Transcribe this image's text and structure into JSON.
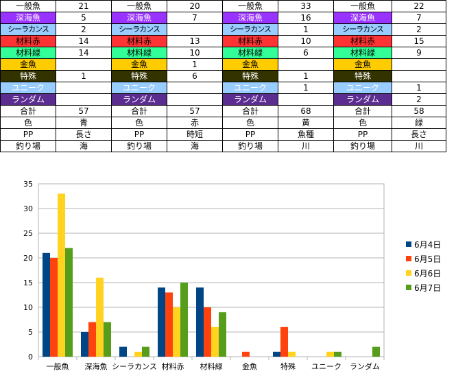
{
  "table": {
    "blocks": [
      {
        "rows": [
          {
            "label": "一般魚",
            "value": "21"
          },
          {
            "label": "深海魚",
            "value": "5"
          },
          {
            "label": "シーラカンス",
            "value": "2"
          },
          {
            "label": "材料赤",
            "value": "14"
          },
          {
            "label": "材料緑",
            "value": "14"
          },
          {
            "label": "金魚",
            "value": ""
          },
          {
            "label": "特殊",
            "value": "1"
          },
          {
            "label": "ユニーク",
            "value": ""
          },
          {
            "label": "ランダム",
            "value": ""
          },
          {
            "label": "合計",
            "value": "57"
          },
          {
            "label": "色",
            "value": "青"
          },
          {
            "label": "PP",
            "value": "長さ"
          },
          {
            "label": "釣り場",
            "value": "海"
          }
        ]
      },
      {
        "rows": [
          {
            "label": "一般魚",
            "value": "20"
          },
          {
            "label": "深海魚",
            "value": "7"
          },
          {
            "label": "シーラカンス",
            "value": ""
          },
          {
            "label": "材料赤",
            "value": "13"
          },
          {
            "label": "材料緑",
            "value": "10"
          },
          {
            "label": "金魚",
            "value": "1"
          },
          {
            "label": "特殊",
            "value": "6"
          },
          {
            "label": "ユニーク",
            "value": ""
          },
          {
            "label": "ランダム",
            "value": ""
          },
          {
            "label": "合計",
            "value": "57"
          },
          {
            "label": "色",
            "value": "赤"
          },
          {
            "label": "PP",
            "value": "時短"
          },
          {
            "label": "釣り場",
            "value": "海"
          }
        ]
      },
      {
        "rows": [
          {
            "label": "一般魚",
            "value": "33"
          },
          {
            "label": "深海魚",
            "value": "16"
          },
          {
            "label": "シーラカンス",
            "value": "1"
          },
          {
            "label": "材料赤",
            "value": "10"
          },
          {
            "label": "材料緑",
            "value": "6"
          },
          {
            "label": "金魚",
            "value": ""
          },
          {
            "label": "特殊",
            "value": "1"
          },
          {
            "label": "ユニーク",
            "value": "1"
          },
          {
            "label": "ランダム",
            "value": ""
          },
          {
            "label": "合計",
            "value": "68"
          },
          {
            "label": "色",
            "value": "黄"
          },
          {
            "label": "PP",
            "value": "魚種"
          },
          {
            "label": "釣り場",
            "value": "川"
          }
        ]
      },
      {
        "rows": [
          {
            "label": "一般魚",
            "value": "22"
          },
          {
            "label": "深海魚",
            "value": "7"
          },
          {
            "label": "シーラカンス",
            "value": "2"
          },
          {
            "label": "材料赤",
            "value": "15"
          },
          {
            "label": "材料緑",
            "value": "9"
          },
          {
            "label": "金魚",
            "value": ""
          },
          {
            "label": "特殊",
            "value": ""
          },
          {
            "label": "ユニーク",
            "value": "1"
          },
          {
            "label": "ランダム",
            "value": "2"
          },
          {
            "label": "合計",
            "value": "58"
          },
          {
            "label": "色",
            "value": "緑"
          },
          {
            "label": "PP",
            "value": "長さ"
          },
          {
            "label": "釣り場",
            "value": "川"
          }
        ]
      }
    ],
    "row_colors": [
      "#ffffff",
      "#9933ff",
      "#99ccff",
      "#ff3333",
      "#33ff99",
      "#ffcc00",
      "#333300",
      "#99ccff",
      "#5c2d91",
      "#ffffff",
      "#ffffff",
      "#ffffff",
      "#ffffff"
    ],
    "row_text_colors": [
      "#000000",
      "#ffffff",
      "#000000",
      "#000000",
      "#000000",
      "#000000",
      "#ffffff",
      "#ffffff",
      "#ffffff",
      "#000000",
      "#000000",
      "#000000",
      "#000000"
    ]
  },
  "chart_data": {
    "type": "bar",
    "categories": [
      "一般魚",
      "深海魚",
      "シーラカンス",
      "材料赤",
      "材料緑",
      "金魚",
      "特殊",
      "ユニーク",
      "ランダム"
    ],
    "series": [
      {
        "name": "6月4日",
        "color": "#004586",
        "values": [
          21,
          5,
          2,
          14,
          14,
          0,
          1,
          0,
          0
        ]
      },
      {
        "name": "6月5日",
        "color": "#ff420e",
        "values": [
          20,
          7,
          0,
          13,
          10,
          1,
          6,
          0,
          0
        ]
      },
      {
        "name": "6月6日",
        "color": "#ffd320",
        "values": [
          33,
          16,
          1,
          10,
          6,
          0,
          1,
          1,
          0
        ]
      },
      {
        "name": "6月7日",
        "color": "#579d1c",
        "values": [
          22,
          7,
          2,
          15,
          9,
          0,
          0,
          1,
          2
        ]
      }
    ],
    "ylim": [
      0,
      35
    ],
    "yticks": [
      0,
      5,
      10,
      15,
      20,
      25,
      30,
      35
    ],
    "grid": true,
    "legend": "right"
  }
}
